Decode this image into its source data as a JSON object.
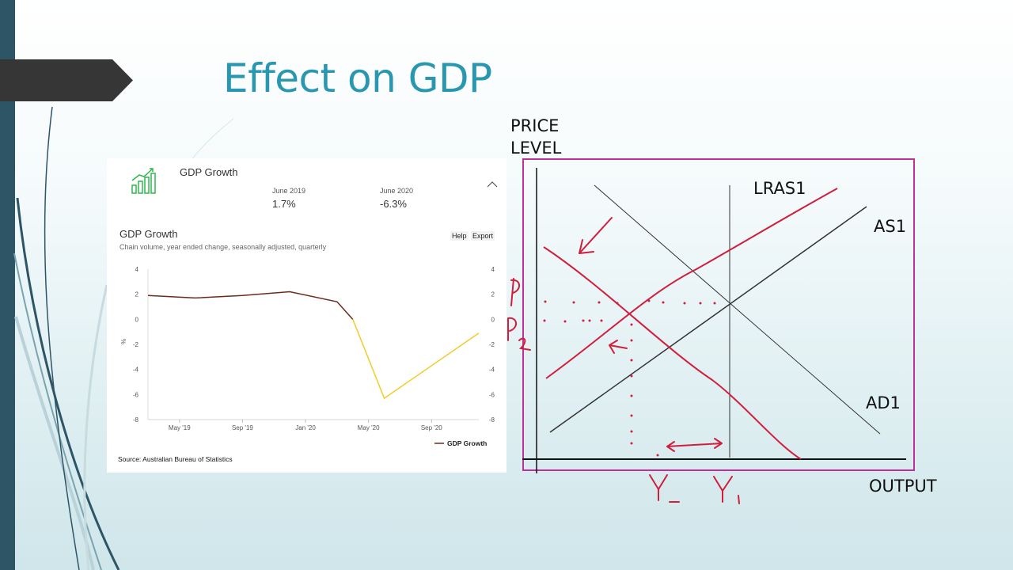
{
  "slide": {
    "title": "Effect on GDP"
  },
  "panel": {
    "header_title": "GDP Growth",
    "kpis": [
      {
        "label": "June 2019",
        "value": "1.7%"
      },
      {
        "label": "June 2020",
        "value": "-6.3%"
      }
    ],
    "chart_title": "GDP Growth",
    "chart_subtitle": "Chain volume, year ended change, seasonally adjusted, quarterly",
    "help_label": "Help",
    "export_label": "Export",
    "source": "Source: Australian Bureau of Statistics",
    "colors": {
      "accent": "#2db84d",
      "series_pre": "#6b2a1e",
      "series_post": "#f2cc2a"
    }
  },
  "chart_data": {
    "type": "line",
    "title": "GDP Growth",
    "subtitle": "Chain volume, year ended change, seasonally adjusted, quarterly",
    "ylabel": "%",
    "xlabel": "",
    "ylim": [
      -8,
      4
    ],
    "yticks": [
      "4",
      "2",
      "0",
      "-2",
      "-4",
      "-6",
      "-8"
    ],
    "x_ticks": [
      "May '19",
      "Sep '19",
      "Jan '20",
      "May '20",
      "Sep '20"
    ],
    "legend": "bottom-right",
    "grid": false,
    "series": [
      {
        "name": "GDP Growth",
        "points": [
          {
            "x": "Mar 2019",
            "y": 1.9
          },
          {
            "x": "Jun 2019",
            "y": 1.7
          },
          {
            "x": "Sep 2019",
            "y": 1.9
          },
          {
            "x": "Dec 2019",
            "y": 2.2
          },
          {
            "x": "Mar 2020",
            "y": 1.4
          },
          {
            "x": "Apr 2020",
            "y": 0.0
          },
          {
            "x": "Jun 2020",
            "y": -6.3
          },
          {
            "x": "Dec 2020",
            "y": -1.1
          }
        ]
      }
    ]
  },
  "diagram": {
    "y_axis_label": "PRICE\nLEVEL",
    "x_axis_label": "OUTPUT",
    "curve_labels": {
      "lras": "LRAS1",
      "as": "AS1",
      "ad": "AD1"
    }
  }
}
